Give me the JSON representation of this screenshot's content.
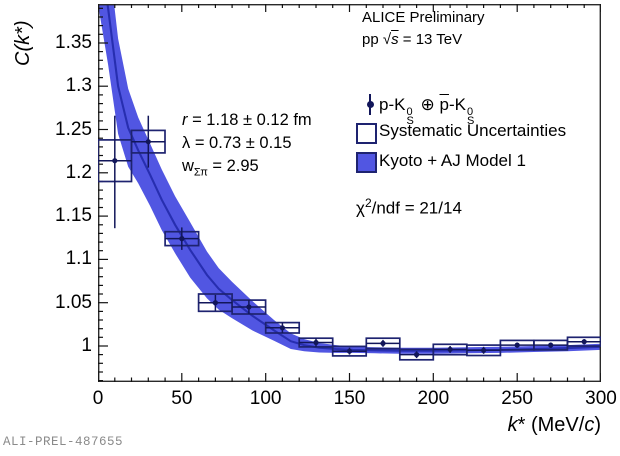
{
  "watermark": "ALI-PREL-487655",
  "header": {
    "line1": "ALICE Preliminary",
    "pp": "pp ",
    "sqrt": "√",
    "s": "s",
    "energy": " = 13 TeV"
  },
  "legend": {
    "data_entry": {
      "prefix": "p-K",
      "sup": "0",
      "sub": "S",
      "oplus": " ⊕ ",
      "pbar": "p",
      "mid": "-K",
      "sup2": "0",
      "sub2": "S"
    },
    "sys_label": "Systematic Uncertainties",
    "model_label": "Kyoto + AJ Model 1"
  },
  "fit": {
    "r_sym": "r",
    "r_rest": " = 1.18 ± 0.12 fm",
    "lambda_line": "λ = 0.73 ± 0.15",
    "w_sym": "w",
    "w_sub": "Σπ",
    "w_rest": " = 2.95",
    "chi_sym": "χ",
    "chi_sup": "2",
    "chi_rest": "/ndf = 21/14"
  },
  "axes": {
    "y_title": "C(k*)",
    "x_k": "k",
    "x_mid": "* (MeV/",
    "x_c": "c",
    "x_close": ")"
  },
  "chart_data": {
    "type": "scatter",
    "title": "",
    "xlabel": "k* (MeV/c)",
    "ylabel": "C(k*)",
    "legend_position": "top-right",
    "grid": false,
    "xlim": [
      0,
      300
    ],
    "ylim": [
      0.9584,
      1.395
    ],
    "x_ticks": [
      0,
      50,
      100,
      150,
      200,
      250,
      300
    ],
    "x_tick_labels": [
      "0",
      "50",
      "100",
      "150",
      "200",
      "250",
      "300"
    ],
    "x_minor_step": 10,
    "y_ticks": [
      1.0,
      1.05,
      1.1,
      1.15,
      1.2,
      1.25,
      1.3,
      1.35
    ],
    "y_tick_labels": [
      "1",
      "1.05",
      "1.1",
      "1.15",
      "1.2",
      "1.25",
      "1.3",
      "1.35"
    ],
    "y_minor_step": 0.01,
    "bin_half_width": 10,
    "points": [
      {
        "k": 10,
        "c": 1.214,
        "stat_up": 0.052,
        "stat_down": 0.078,
        "sys": 0.024
      },
      {
        "k": 30,
        "c": 1.236,
        "stat_up": 0.03,
        "stat_down": 0.03,
        "sys": 0.013
      },
      {
        "k": 50,
        "c": 1.124,
        "stat_up": 0.013,
        "stat_down": 0.013,
        "sys": 0.008
      },
      {
        "k": 70,
        "c": 1.05,
        "stat_up": 0.009,
        "stat_down": 0.009,
        "sys": 0.01
      },
      {
        "k": 90,
        "c": 1.045,
        "stat_up": 0.008,
        "stat_down": 0.008,
        "sys": 0.008
      },
      {
        "k": 110,
        "c": 1.021,
        "stat_up": 0.006,
        "stat_down": 0.006,
        "sys": 0.006
      },
      {
        "k": 130,
        "c": 1.004,
        "stat_up": 0.005,
        "stat_down": 0.005,
        "sys": 0.005
      },
      {
        "k": 150,
        "c": 0.994,
        "stat_up": 0.004,
        "stat_down": 0.004,
        "sys": 0.0055
      },
      {
        "k": 170,
        "c": 1.003,
        "stat_up": 0.004,
        "stat_down": 0.004,
        "sys": 0.006
      },
      {
        "k": 190,
        "c": 0.99,
        "stat_up": 0.004,
        "stat_down": 0.004,
        "sys": 0.006
      },
      {
        "k": 210,
        "c": 0.996,
        "stat_up": 0.004,
        "stat_down": 0.004,
        "sys": 0.006
      },
      {
        "k": 230,
        "c": 0.995,
        "stat_up": 0.004,
        "stat_down": 0.004,
        "sys": 0.006
      },
      {
        "k": 250,
        "c": 1.001,
        "stat_up": 0.003,
        "stat_down": 0.003,
        "sys": 0.0055
      },
      {
        "k": 270,
        "c": 1.001,
        "stat_up": 0.003,
        "stat_down": 0.003,
        "sys": 0.0055
      },
      {
        "k": 290,
        "c": 1.005,
        "stat_up": 0.003,
        "stat_down": 0.003,
        "sys": 0.005
      }
    ],
    "model_band": {
      "k": [
        0,
        6,
        12,
        18,
        24,
        31,
        38,
        46,
        55,
        65,
        72,
        80,
        92,
        105,
        115,
        123,
        132,
        142,
        152,
        165,
        180,
        200,
        220,
        240,
        260,
        280,
        300
      ],
      "upper": [
        1.545,
        1.455,
        1.355,
        1.297,
        1.264,
        1.234,
        1.204,
        1.173,
        1.143,
        1.109,
        1.09,
        1.074,
        1.052,
        1.03,
        1.0145,
        1.008,
        1.0035,
        1.001,
        0.999,
        0.9985,
        0.998,
        0.998,
        0.9985,
        0.999,
        1.0,
        1.001,
        1.0025
      ],
      "lower": [
        1.395,
        1.325,
        1.245,
        1.207,
        1.188,
        1.162,
        1.134,
        1.107,
        1.079,
        1.055,
        1.042,
        1.032,
        1.018,
        1.006,
        0.9965,
        0.994,
        0.9925,
        0.992,
        0.992,
        0.9915,
        0.991,
        0.991,
        0.9915,
        0.992,
        0.993,
        0.994,
        0.9955
      ],
      "center": [
        1.47,
        1.39,
        1.3,
        1.252,
        1.226,
        1.198,
        1.169,
        1.14,
        1.111,
        1.082,
        1.066,
        1.053,
        1.035,
        1.018,
        1.0055,
        1.001,
        0.998,
        0.9965,
        0.9955,
        0.995,
        0.9945,
        0.9945,
        0.995,
        0.9955,
        0.9965,
        0.9975,
        0.999
      ]
    },
    "fit_params": {
      "r_fm": "1.18 ± 0.12",
      "lambda": "0.73 ± 0.15",
      "w_sigma_pi": "2.95",
      "chi2_ndf": "21/14"
    },
    "colors": {
      "band": "#5156e2",
      "model_line": "#272eb0",
      "data": "#12165a",
      "sys_box": "#1e2370",
      "frame": "#2a2a2a",
      "tick": "#111111"
    }
  }
}
